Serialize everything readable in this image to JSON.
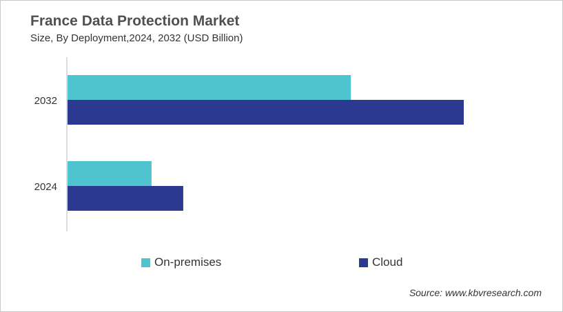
{
  "chart_data": {
    "type": "bar",
    "orientation": "horizontal",
    "title": "France Data Protection Market",
    "subtitle": "Size, By Deployment,2024, 2032 (USD Billion)",
    "categories": [
      "2032",
      "2024"
    ],
    "series": [
      {
        "name": "On-premises",
        "color": "#4fc4cf",
        "values": [
          0.715,
          0.212
        ]
      },
      {
        "name": "Cloud",
        "color": "#2b3990",
        "values": [
          1.0,
          0.292
        ]
      }
    ],
    "values_note": "relative bar lengths (no axis values printed)",
    "xlim": [
      0,
      1
    ],
    "grid": false,
    "legend_position": "bottom",
    "source": "Source: www.kbvresearch.com"
  }
}
